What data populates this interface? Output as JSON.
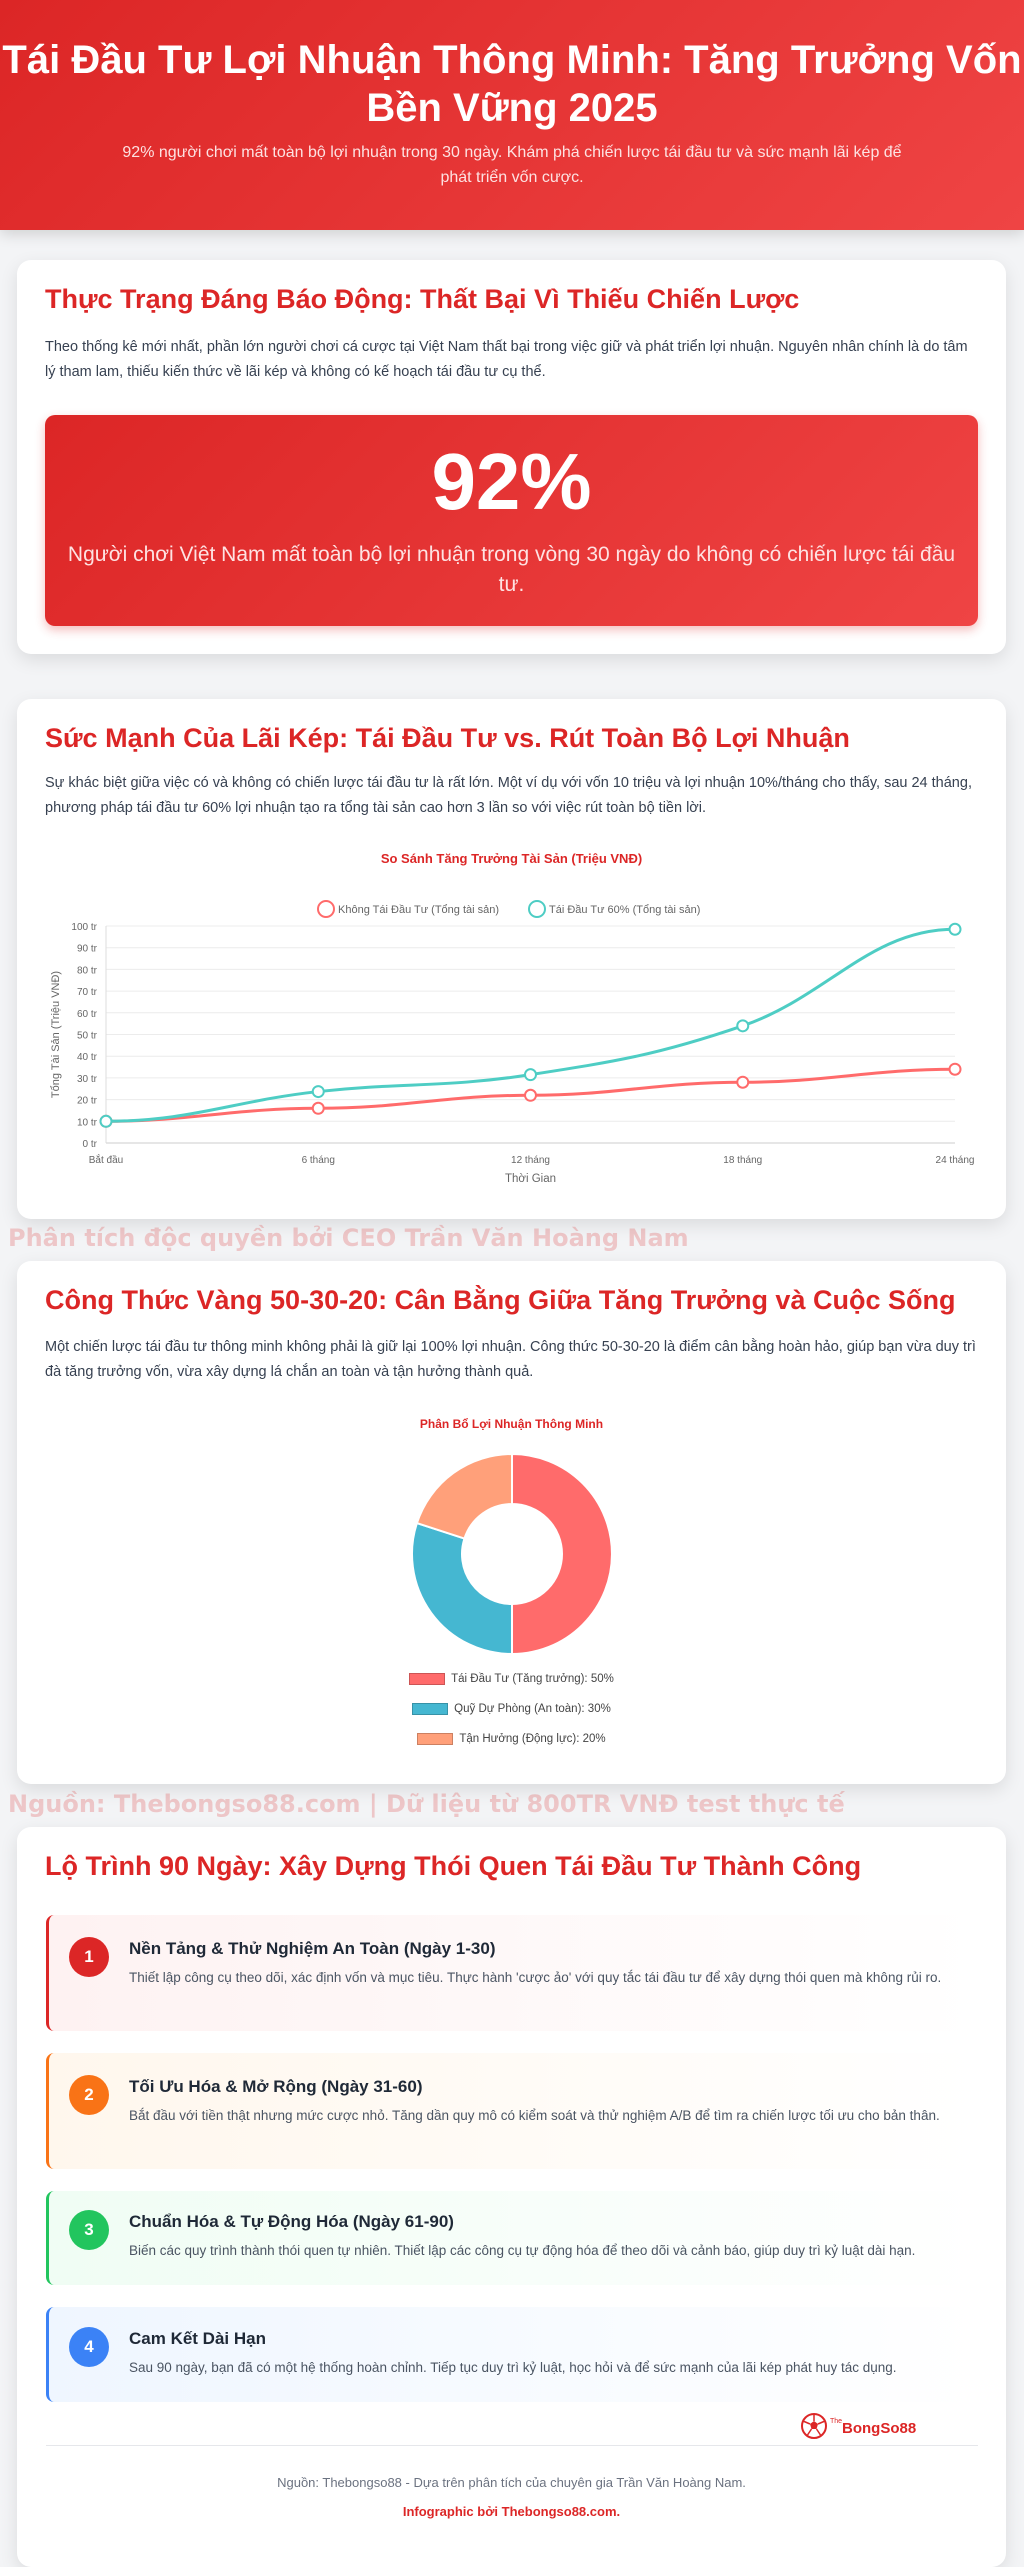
{
  "header": {
    "title": "Tái Đầu Tư Lợi Nhuận Thông Minh: Tăng Trưởng Vốn Bền Vững 2025",
    "subtitle": "92% người chơi mất toàn bộ lợi nhuận trong 30 ngày. Khám phá chiến lược tái đầu tư và sức mạnh lãi kép để phát triển vốn cược."
  },
  "section1": {
    "title": "Thực Trạng Đáng Báo Động: Thất Bại Vì Thiếu Chiến Lược",
    "text": "Theo thống kê mới nhất, phần lớn người chơi cá cược tại Việt Nam thất bại trong việc giữ và phát triển lợi nhuận. Nguyên nhân chính là do tâm lý tham lam, thiếu kiến thức về lãi kép và không có kế hoạch tái đầu tư cụ thể.",
    "stat": "92%",
    "stat_caption": "Người chơi Việt Nam mất toàn bộ lợi nhuận trong vòng 30 ngày do không có chiến lược tái đầu tư."
  },
  "section2": {
    "title": "Sức Mạnh Của Lãi Kép: Tái Đầu Tư vs. Rút Toàn Bộ Lợi Nhuận",
    "text": "Sự khác biệt giữa việc có và không có chiến lược tái đầu tư là rất lớn. Một ví dụ với vốn 10 triệu và lợi nhuận 10%/tháng cho thấy, sau 24 tháng, phương pháp tái đầu tư 60% lợi nhuận tạo ra tổng tài sản cao hơn 3 lần so với việc rút toàn bộ tiền lời."
  },
  "watermark1": "Phân tích độc quyền bởi CEO Trần Văn Hoàng Nam",
  "section3": {
    "title": "Công Thức Vàng 50-30-20: Cân Bằng Giữa Tăng Trưởng và Cuộc Sống",
    "text": "Một chiến lược tái đầu tư thông minh không phải là giữ lại 100% lợi nhuận. Công thức 50-30-20 là điểm cân bằng hoàn hảo, giúp bạn vừa duy trì đà tăng trưởng vốn, vừa xây dựng lá chắn an toàn và tận hưởng thành quả."
  },
  "watermark2": "Nguồn: Thebongso88.com | Dữ liệu từ 800TR VNĐ test thực tế",
  "chart_data": [
    {
      "type": "line",
      "title": "So Sánh Tăng Trưởng Tài Sản (Triệu VNĐ)",
      "xlabel": "Thời Gian",
      "ylabel": "Tổng Tài Sản (Triệu VNĐ)",
      "categories": [
        "Bắt đầu",
        "6 tháng",
        "12 tháng",
        "18 tháng",
        "24 tháng"
      ],
      "ylim": [
        0,
        100
      ],
      "yticks": [
        "0 tr",
        "10 tr",
        "20 tr",
        "30 tr",
        "40 tr",
        "50 tr",
        "60 tr",
        "70 tr",
        "80 tr",
        "90 tr",
        "100 tr"
      ],
      "grid": true,
      "legend": "top",
      "series": [
        {
          "name": "Không Tái Đầu Tư (Tổng tài sản)",
          "color": "#ff6b6b",
          "values": [
            10,
            16,
            22,
            28,
            34
          ]
        },
        {
          "name": "Tái Đầu Tư 60% (Tổng tài sản)",
          "color": "#4ecdc4",
          "values": [
            10,
            23.7,
            31.5,
            54,
            98.5
          ]
        }
      ]
    },
    {
      "type": "pie",
      "title": "Phân Bổ Lợi Nhuận Thông Minh",
      "legend": "bottom",
      "slices": [
        {
          "label": "Tái Đầu Tư (Tăng trưởng): 50%",
          "value": 50,
          "color": "#ff6b6b"
        },
        {
          "label": "Quỹ Dự Phòng (An toàn): 30%",
          "value": 30,
          "color": "#45b7d1"
        },
        {
          "label": "Tận Hưởng (Động lực): 20%",
          "value": 20,
          "color": "#ffa07a"
        }
      ]
    }
  ],
  "section4": {
    "title": "Lộ Trình 90 Ngày: Xây Dựng Thói Quen Tái Đầu Tư Thành Công",
    "steps": [
      {
        "num": "1",
        "title": "Nền Tảng & Thử Nghiệm An Toàn (Ngày 1-30)",
        "text": "Thiết lập công cụ theo dõi, xác định vốn và mục tiêu. Thực hành 'cược ảo' với quy tắc tái đầu tư để xây dựng thói quen mà không rủi ro.",
        "color": "#dc2626"
      },
      {
        "num": "2",
        "title": "Tối Ưu Hóa & Mở Rộng (Ngày 31-60)",
        "text": "Bắt đầu với tiền thật nhưng mức cược nhỏ. Tăng dần quy mô có kiểm soát và thử nghiệm A/B để tìm ra chiến lược tối ưu cho bản thân.",
        "color": "#f97316"
      },
      {
        "num": "3",
        "title": "Chuẩn Hóa & Tự Động Hóa (Ngày 61-90)",
        "text": "Biến các quy trình thành thói quen tự nhiên. Thiết lập các công cụ tự động hóa để theo dõi và cảnh báo, giúp duy trì kỷ luật dài hạn.",
        "color": "#22c55e"
      },
      {
        "num": "4",
        "title": "Cam Kết Dài Hạn",
        "text": "Sau 90 ngày, bạn đã có một hệ thống hoàn chỉnh. Tiếp tục duy trì kỷ luật, học hỏi và để sức mạnh của lãi kép phát huy tác dụng.",
        "color": "#3b82f6"
      }
    ]
  },
  "logo": {
    "prefix": "The",
    "text": "BongSo88"
  },
  "footer": {
    "source": "Nguồn: Thebongso88 - Dựa trên phân tích của chuyên gia Trần Văn Hoàng Nam.",
    "credit": "Infographic bởi Thebongso88.com."
  }
}
